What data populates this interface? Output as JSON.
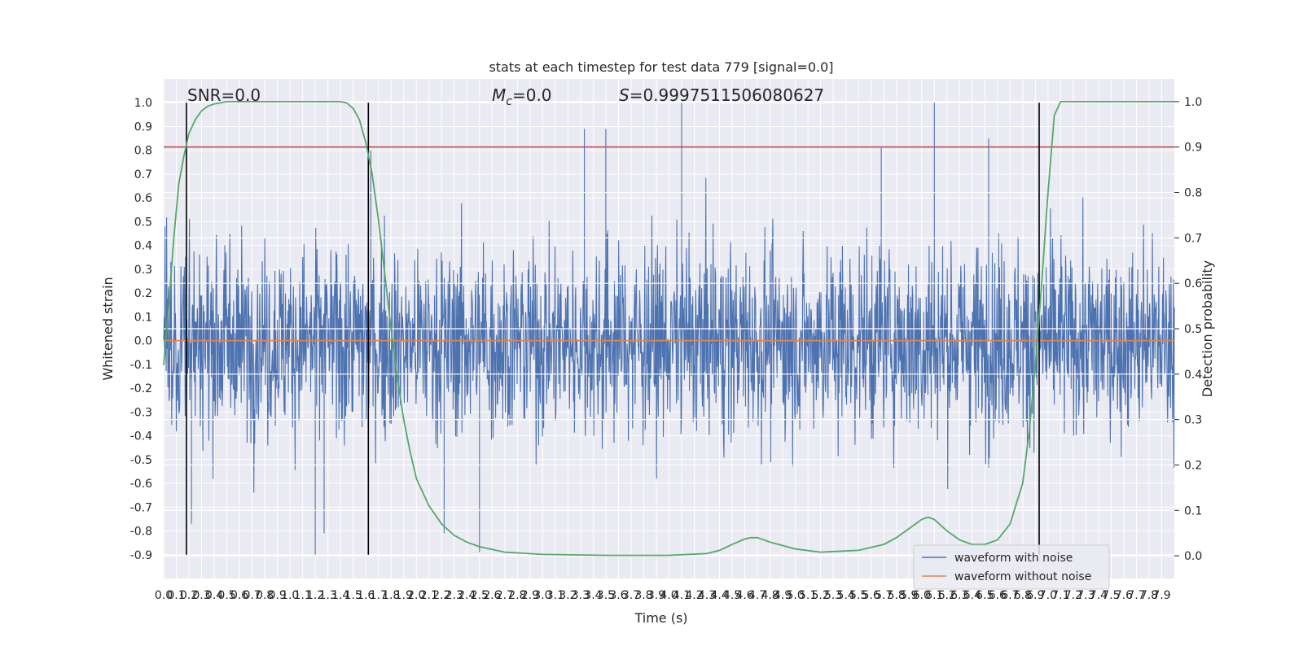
{
  "chart_data": {
    "type": "line",
    "title": "stats at each timestep for test data 779 [signal=0.0]",
    "xlabel": "Time (s)",
    "ylabel_left": "Whitened strain",
    "ylabel_right": "Detection probability",
    "xlim": [
      0.0,
      8.0
    ],
    "ylim_left": [
      -1.0,
      1.1
    ],
    "ylim_right": [
      -0.05,
      1.05
    ],
    "grid": true,
    "legend_position": "lower-right",
    "annotations": {
      "snr": "SNR=0.0",
      "mc_symbol": "M",
      "mc_sub": "c",
      "mc_value": "=0.0",
      "s_symbol": "S",
      "s_value": "=0.9997511506080627"
    },
    "x_ticks": [
      "0.0",
      "0.1",
      "0.2",
      "0.3",
      "0.4",
      "0.5",
      "0.6",
      "0.7",
      "0.8",
      "0.9",
      "1.0",
      "1.1",
      "1.2",
      "1.3",
      "1.4",
      "1.5",
      "1.6",
      "1.7",
      "1.8",
      "1.9",
      "2.0",
      "2.1",
      "2.2",
      "2.3",
      "2.4",
      "2.5",
      "2.6",
      "2.7",
      "2.8",
      "2.9",
      "3.0",
      "3.1",
      "3.2",
      "3.3",
      "3.4",
      "3.5",
      "3.6",
      "3.7",
      "3.8",
      "3.9",
      "4.0",
      "4.1",
      "4.2",
      "4.3",
      "4.4",
      "4.5",
      "4.6",
      "4.7",
      "4.8",
      "4.9",
      "5.0",
      "5.1",
      "5.2",
      "5.3",
      "5.4",
      "5.5",
      "5.6",
      "5.7",
      "5.8",
      "5.9",
      "6.0",
      "6.1",
      "6.2",
      "6.3",
      "6.4",
      "6.5",
      "6.6",
      "6.7",
      "6.8",
      "6.9",
      "7.0",
      "7.1",
      "7.2",
      "7.3",
      "7.4",
      "7.5",
      "7.6",
      "7.7",
      "7.8",
      "7.9"
    ],
    "y_ticks_left": [
      "1.0",
      "0.9",
      "0.8",
      "0.7",
      "0.6",
      "0.5",
      "0.4",
      "0.3",
      "0.2",
      "0.1",
      "0.0",
      "-0.1",
      "-0.2",
      "-0.3",
      "-0.4",
      "-0.5",
      "-0.6",
      "-0.7",
      "-0.8",
      "-0.9"
    ],
    "y_ticks_right": [
      "1.0",
      "0.9",
      "0.8",
      "0.7",
      "0.6",
      "0.5",
      "0.4",
      "0.3",
      "0.2",
      "0.1",
      "0.0"
    ],
    "threshold": {
      "axis": "right",
      "value": 0.9,
      "color": "#c44e52"
    },
    "vertical_lines_x": [
      0.18,
      1.62,
      6.93
    ],
    "series": [
      {
        "name": "waveform with noise",
        "axis": "left",
        "color": "#4c72b0",
        "kind": "noise",
        "summary": {
          "typical_amplitude": 0.2,
          "max": 1.0,
          "min": -0.9
        },
        "peaks": [
          {
            "x": 4.1,
            "y": 1.0
          },
          {
            "x": 6.1,
            "y": 1.0
          },
          {
            "x": 3.33,
            "y": 0.89
          },
          {
            "x": 3.5,
            "y": 0.89
          },
          {
            "x": 6.53,
            "y": 0.85
          },
          {
            "x": 5.68,
            "y": 0.81
          },
          {
            "x": 1.64,
            "y": 0.8
          },
          {
            "x": 1.2,
            "y": -0.9
          },
          {
            "x": 2.5,
            "y": -0.89
          },
          {
            "x": 1.27,
            "y": -0.81
          },
          {
            "x": 0.22,
            "y": -0.77
          },
          {
            "x": 2.22,
            "y": -0.81
          }
        ]
      },
      {
        "name": "waveform without noise",
        "axis": "left",
        "color": "#dd8452",
        "x": [
          0.0,
          8.0
        ],
        "y": [
          0.0,
          0.0
        ]
      },
      {
        "name": "",
        "axis": "right",
        "color": "#55a868",
        "x": [
          0.0,
          0.04,
          0.08,
          0.12,
          0.16,
          0.2,
          0.25,
          0.3,
          0.35,
          0.4,
          0.5,
          0.6,
          0.8,
          1.0,
          1.2,
          1.4,
          1.45,
          1.5,
          1.55,
          1.6,
          1.65,
          1.7,
          1.75,
          1.8,
          1.85,
          1.9,
          1.95,
          2.0,
          2.1,
          2.2,
          2.3,
          2.4,
          2.5,
          2.7,
          3.0,
          3.5,
          4.0,
          4.3,
          4.4,
          4.5,
          4.6,
          4.65,
          4.7,
          4.8,
          5.0,
          5.2,
          5.5,
          5.7,
          5.8,
          5.9,
          6.0,
          6.05,
          6.1,
          6.2,
          6.3,
          6.4,
          6.5,
          6.6,
          6.7,
          6.8,
          6.85,
          6.9,
          6.95,
          7.0,
          7.05,
          7.1,
          7.2,
          7.5,
          8.0
        ],
        "y": [
          0.42,
          0.55,
          0.7,
          0.82,
          0.88,
          0.93,
          0.96,
          0.98,
          0.99,
          0.995,
          1.0,
          1.0,
          1.0,
          1.0,
          1.0,
          1.0,
          0.997,
          0.985,
          0.96,
          0.91,
          0.84,
          0.74,
          0.62,
          0.5,
          0.39,
          0.3,
          0.23,
          0.17,
          0.11,
          0.07,
          0.045,
          0.03,
          0.02,
          0.008,
          0.003,
          0.001,
          0.001,
          0.005,
          0.012,
          0.025,
          0.037,
          0.04,
          0.04,
          0.03,
          0.015,
          0.008,
          0.012,
          0.025,
          0.04,
          0.06,
          0.08,
          0.085,
          0.08,
          0.055,
          0.035,
          0.025,
          0.025,
          0.035,
          0.07,
          0.16,
          0.27,
          0.42,
          0.6,
          0.8,
          0.97,
          1.0,
          1.0,
          1.0,
          1.0
        ]
      }
    ]
  }
}
